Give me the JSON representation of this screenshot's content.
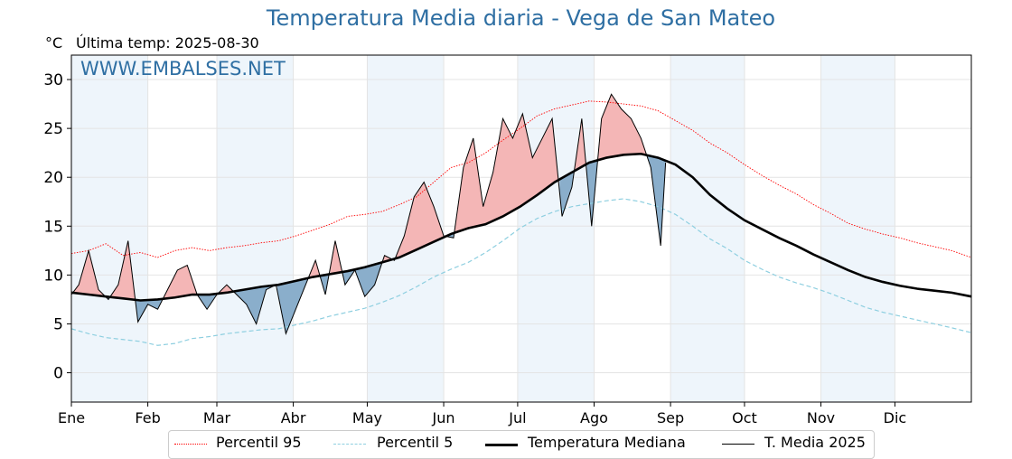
{
  "chart_data": {
    "type": "line",
    "title": "Temperatura Media diaria - Vega de San Mateo",
    "unit": "°C",
    "subtitle": "Última temp: 2025-08-30",
    "watermark": "WWW.EMBALSES.NET",
    "ylim": [
      -3,
      32.5
    ],
    "yticks": [
      0,
      5,
      10,
      15,
      20,
      25,
      30
    ],
    "xlim": [
      1,
      366
    ],
    "months": [
      "Ene",
      "Feb",
      "Mar",
      "Abr",
      "May",
      "Jun",
      "Jul",
      "Ago",
      "Sep",
      "Oct",
      "Nov",
      "Dic"
    ],
    "month_start_days": [
      1,
      32,
      60,
      91,
      121,
      152,
      182,
      213,
      244,
      274,
      305,
      335
    ],
    "grid": true,
    "legend_position": "bottom",
    "colors": {
      "title": "#2f6fa3",
      "p95": "#ff0000",
      "p5": "#8ecfe0",
      "median": "#000000",
      "actual": "#000000",
      "warm_fill": "#f4b6b6",
      "cold_fill": "#8aaecb",
      "band": "#eef5fb"
    },
    "series": [
      {
        "name": "Percentil 95",
        "style": "dotted-red",
        "x": [
          1,
          8,
          15,
          22,
          29,
          36,
          43,
          50,
          57,
          64,
          71,
          78,
          85,
          92,
          99,
          106,
          113,
          120,
          127,
          134,
          141,
          148,
          155,
          162,
          169,
          176,
          183,
          190,
          197,
          204,
          211,
          218,
          225,
          232,
          239,
          246,
          253,
          260,
          267,
          274,
          281,
          288,
          295,
          302,
          309,
          316,
          323,
          330,
          337,
          344,
          351,
          358,
          366
        ],
        "y": [
          12.2,
          12.5,
          13.2,
          12.0,
          12.3,
          11.8,
          12.5,
          12.8,
          12.5,
          12.8,
          13.0,
          13.3,
          13.5,
          14.0,
          14.6,
          15.2,
          16.0,
          16.2,
          16.5,
          17.2,
          18.0,
          19.5,
          21.0,
          21.5,
          22.5,
          23.8,
          25.0,
          26.3,
          27.0,
          27.4,
          27.8,
          27.7,
          27.5,
          27.3,
          26.8,
          25.8,
          24.8,
          23.5,
          22.5,
          21.3,
          20.2,
          19.2,
          18.3,
          17.2,
          16.3,
          15.3,
          14.7,
          14.2,
          13.8,
          13.3,
          12.9,
          12.5,
          11.8
        ]
      },
      {
        "name": "Percentil 5",
        "style": "dashed-lightblue",
        "x": [
          1,
          8,
          15,
          22,
          29,
          36,
          43,
          50,
          57,
          64,
          71,
          78,
          85,
          92,
          99,
          106,
          113,
          120,
          127,
          134,
          141,
          148,
          155,
          162,
          169,
          176,
          183,
          190,
          197,
          204,
          211,
          218,
          225,
          232,
          239,
          246,
          253,
          260,
          267,
          274,
          281,
          288,
          295,
          302,
          309,
          316,
          323,
          330,
          337,
          344,
          351,
          358,
          366
        ],
        "y": [
          4.5,
          4.0,
          3.6,
          3.4,
          3.2,
          2.8,
          3.0,
          3.5,
          3.7,
          4.0,
          4.2,
          4.4,
          4.5,
          4.9,
          5.3,
          5.8,
          6.2,
          6.6,
          7.2,
          7.9,
          8.8,
          9.8,
          10.6,
          11.3,
          12.3,
          13.5,
          14.8,
          15.8,
          16.5,
          17.0,
          17.3,
          17.6,
          17.8,
          17.5,
          17.0,
          16.2,
          15.0,
          13.7,
          12.7,
          11.5,
          10.6,
          9.8,
          9.2,
          8.7,
          8.1,
          7.4,
          6.7,
          6.2,
          5.8,
          5.4,
          5.0,
          4.6,
          4.1
        ]
      },
      {
        "name": "Temperatura Mediana",
        "style": "thick-black",
        "x": [
          1,
          8,
          15,
          22,
          29,
          36,
          43,
          50,
          57,
          64,
          71,
          78,
          85,
          92,
          99,
          106,
          113,
          120,
          127,
          134,
          141,
          148,
          155,
          162,
          169,
          176,
          183,
          190,
          197,
          204,
          211,
          218,
          225,
          232,
          239,
          246,
          253,
          260,
          267,
          274,
          281,
          288,
          295,
          302,
          309,
          316,
          323,
          330,
          337,
          344,
          351,
          358,
          366
        ],
        "y": [
          8.2,
          8.0,
          7.8,
          7.6,
          7.4,
          7.5,
          7.7,
          8.0,
          8.0,
          8.2,
          8.5,
          8.8,
          9.0,
          9.4,
          9.8,
          10.1,
          10.4,
          10.8,
          11.3,
          11.8,
          12.6,
          13.4,
          14.2,
          14.8,
          15.2,
          16.0,
          17.0,
          18.2,
          19.5,
          20.5,
          21.5,
          22.0,
          22.3,
          22.4,
          22.0,
          21.3,
          20.0,
          18.2,
          16.8,
          15.6,
          14.7,
          13.8,
          13.0,
          12.1,
          11.3,
          10.5,
          9.8,
          9.3,
          8.9,
          8.6,
          8.4,
          8.2,
          7.8
        ]
      },
      {
        "name": "T. Media 2025",
        "style": "thin-black",
        "x": [
          1,
          4,
          8,
          12,
          16,
          20,
          24,
          28,
          32,
          36,
          40,
          44,
          48,
          52,
          56,
          60,
          64,
          68,
          72,
          76,
          80,
          84,
          88,
          92,
          96,
          100,
          104,
          108,
          112,
          116,
          120,
          124,
          128,
          132,
          136,
          140,
          144,
          148,
          152,
          156,
          160,
          164,
          168,
          172,
          176,
          180,
          184,
          188,
          192,
          196,
          200,
          204,
          208,
          212,
          216,
          220,
          224,
          228,
          232,
          236,
          240,
          242
        ],
        "y": [
          8.0,
          9.0,
          12.5,
          8.5,
          7.5,
          9.0,
          13.5,
          5.2,
          7.0,
          6.5,
          8.5,
          10.5,
          11.0,
          8.0,
          6.5,
          8.0,
          9.0,
          8.0,
          7.0,
          5.0,
          8.5,
          9.0,
          4.0,
          6.5,
          9.0,
          11.5,
          8.0,
          13.5,
          9.0,
          10.5,
          7.8,
          9.0,
          12.0,
          11.5,
          14.0,
          18.0,
          19.5,
          17.0,
          14.0,
          13.8,
          21.0,
          24.0,
          17.0,
          20.5,
          26.0,
          24.0,
          26.5,
          22.0,
          24.0,
          26.0,
          16.0,
          19.0,
          26.0,
          15.0,
          26.0,
          28.5,
          27.0,
          26.0,
          24.0,
          21.0,
          13.0,
          21.5
        ]
      }
    ]
  }
}
